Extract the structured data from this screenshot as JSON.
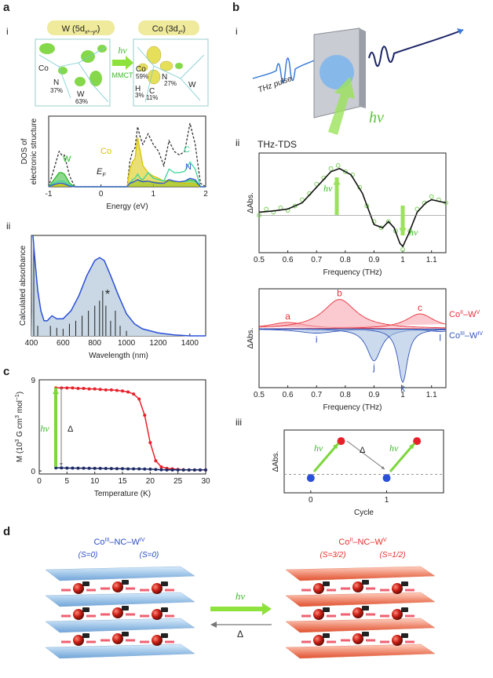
{
  "panel_labels": [
    "a",
    "b",
    "c",
    "d"
  ],
  "sub_labels": [
    "i",
    "ii",
    "i",
    "ii",
    "iii"
  ],
  "orbitals": {
    "left_title": [
      "W (5d",
      "x²−y²",
      ")"
    ],
    "right_title": [
      "Co (3d",
      "z²",
      ")"
    ],
    "arrow_top": "hν",
    "arrow_bottom": "MMCT",
    "left_atoms": [
      "Co",
      "N",
      "37%",
      "W",
      "63%"
    ],
    "right_atoms": [
      "Co",
      "59%",
      "N",
      "27%",
      "H",
      "3%",
      "C",
      "11%",
      "W"
    ]
  },
  "thz_schematic": {
    "pulse_label": "THz pulse",
    "light_label": "hν"
  },
  "thz_title": "THz-TDS",
  "chart_data": [
    {
      "type": "area",
      "xlabel": "Energy (eV)",
      "ylabel": [
        "DOS of",
        "electronic structure"
      ],
      "xlim": [
        -1,
        2
      ],
      "xticks": [
        -1,
        0,
        1,
        2
      ],
      "ylim": [
        0,
        1
      ],
      "annotation": [
        "E",
        "F"
      ],
      "x": [
        -1,
        -0.9,
        -0.8,
        -0.75,
        -0.7,
        -0.6,
        -0.5,
        0.5,
        0.55,
        0.6,
        0.65,
        0.7,
        0.75,
        0.8,
        0.9,
        1.0,
        1.1,
        1.2,
        1.3,
        1.4,
        1.5,
        1.6,
        1.7,
        1.8,
        1.9,
        2.0
      ],
      "series": [
        {
          "color": "#333333",
          "dashed": true,
          "values": [
            0,
            0.25,
            0.5,
            0.45,
            0.45,
            0.15,
            0,
            0,
            0.35,
            0.5,
            0.55,
            0.85,
            0.7,
            0.6,
            0.75,
            0.6,
            0.5,
            0.3,
            0.65,
            0.5,
            0.45,
            0.5,
            0.9,
            0.6,
            0.05,
            0
          ]
        },
        {
          "name": "W",
          "color": "#2db82d",
          "fill": true,
          "values": [
            0,
            0.1,
            0.2,
            0.2,
            0.18,
            0.05,
            0,
            0,
            0.05,
            0.07,
            0.08,
            0.1,
            0.09,
            0.08,
            0.08,
            0.07,
            0.06,
            0.05,
            0.08,
            0.07,
            0.07,
            0.08,
            0.1,
            0.08,
            0,
            0
          ]
        },
        {
          "name": "Co",
          "color": "#d8c400",
          "fill": true,
          "values": [
            0,
            0.02,
            0.03,
            0.03,
            0.03,
            0.01,
            0,
            0,
            0.25,
            0.35,
            0.4,
            0.7,
            0.5,
            0.3,
            0.2,
            0.15,
            0.12,
            0.08,
            0.1,
            0.08,
            0.06,
            0.05,
            0.05,
            0.04,
            0,
            0
          ]
        },
        {
          "name": "C",
          "color": "#39d49a",
          "values": [
            0,
            0.05,
            0.08,
            0.08,
            0.07,
            0.02,
            0,
            0,
            0.05,
            0.1,
            0.12,
            0.18,
            0.12,
            0.1,
            0.2,
            0.12,
            0.1,
            0.08,
            0.25,
            0.2,
            0.2,
            0.22,
            0.35,
            0.25,
            0,
            0
          ]
        },
        {
          "name": "N",
          "color": "#3355dd",
          "values": [
            0,
            0.03,
            0.05,
            0.05,
            0.04,
            0.01,
            0,
            0,
            0.05,
            0.06,
            0.08,
            0.1,
            0.08,
            0.07,
            0.08,
            0.06,
            0.05,
            0.05,
            0.1,
            0.08,
            0.07,
            0.08,
            0.12,
            0.1,
            0,
            0
          ]
        }
      ]
    },
    {
      "type": "line",
      "xlabel": "Wavelength (nm)",
      "ylabel": "Calculated absorbance",
      "xlim": [
        400,
        1500
      ],
      "xticks": [
        400,
        600,
        800,
        1000,
        1200,
        1400
      ],
      "ylim": [
        0,
        1
      ],
      "fill_under": true,
      "annotation": "*",
      "series": [
        {
          "color": "#2b50d8",
          "x": [
            410,
            420,
            440,
            460,
            480,
            500,
            530,
            560,
            600,
            650,
            700,
            750,
            800,
            830,
            860,
            900,
            950,
            1000,
            1050,
            1100,
            1200,
            1300,
            1400,
            1500
          ],
          "values": [
            1.0,
            0.8,
            0.45,
            0.25,
            0.15,
            0.15,
            0.2,
            0.17,
            0.17,
            0.25,
            0.4,
            0.6,
            0.75,
            0.78,
            0.75,
            0.6,
            0.4,
            0.22,
            0.12,
            0.07,
            0.03,
            0.01,
            0,
            0
          ]
        }
      ],
      "sticks": {
        "color": "#222222",
        "x": [
          415,
          440,
          520,
          560,
          600,
          640,
          680,
          720,
          760,
          800,
          830,
          850,
          870,
          900,
          930,
          960,
          1000
        ],
        "values": [
          0.9,
          0.1,
          0.1,
          0.08,
          0.07,
          0.12,
          0.15,
          0.2,
          0.25,
          0.3,
          0.35,
          0.45,
          0.3,
          0.15,
          0.25,
          0.1,
          0.05
        ]
      }
    },
    {
      "type": "line",
      "xlabel": "Temperature (K)",
      "ylabel": [
        "M (10",
        "3",
        " G cm",
        "3",
        " mol",
        "−1",
        ")"
      ],
      "xlim": [
        0,
        30
      ],
      "xticks": [
        0,
        5,
        10,
        15,
        20,
        25,
        30
      ],
      "ylim": [
        -0.3,
        9
      ],
      "yticks": [
        0,
        9
      ],
      "markers": true,
      "annotations": [
        "hν",
        "Δ"
      ],
      "x": [
        3,
        4,
        5,
        6,
        7,
        8,
        9,
        10,
        11,
        12,
        13,
        14,
        15,
        16,
        17,
        18,
        19,
        20,
        21,
        22,
        23,
        24,
        25,
        26,
        27,
        28,
        29,
        30
      ],
      "series": [
        {
          "color": "#e8202a",
          "values": [
            8.2,
            8.2,
            8.2,
            8.2,
            8.15,
            8.15,
            8.1,
            8.1,
            8.05,
            8.0,
            8.0,
            7.95,
            7.9,
            7.8,
            7.6,
            7.1,
            5.5,
            2.8,
            1.0,
            0.4,
            0.25,
            0.2,
            0.15,
            0.12,
            0.1,
            0.1,
            0.1,
            0.1
          ]
        },
        {
          "color": "#1c2a66",
          "values": [
            0.3,
            0.3,
            0.28,
            0.28,
            0.27,
            0.27,
            0.26,
            0.25,
            0.25,
            0.24,
            0.23,
            0.22,
            0.22,
            0.2,
            0.2,
            0.2,
            0.18,
            0.17,
            0.15,
            0.12,
            0.1,
            0.1,
            0.1,
            0.1,
            0.1,
            0.1,
            0.1,
            0.1
          ]
        }
      ]
    },
    {
      "type": "scatter",
      "xlabel": "Frequency (THz)",
      "ylabel": "ΔAbs.",
      "xlim": [
        0.5,
        1.15
      ],
      "xticks": [
        0.5,
        0.6,
        0.7,
        0.8,
        0.9,
        1,
        1.1
      ],
      "ylim": [
        -0.6,
        1
      ],
      "annotations": [
        "hν",
        "hν"
      ],
      "series": [
        {
          "color": "#7ccf5a",
          "style": "points-open",
          "x": [
            0.5,
            0.525,
            0.55,
            0.575,
            0.6,
            0.625,
            0.65,
            0.675,
            0.7,
            0.725,
            0.75,
            0.775,
            0.8,
            0.825,
            0.85,
            0.875,
            0.9,
            0.925,
            0.95,
            0.975,
            1.0,
            1.025,
            1.05,
            1.075,
            1.1,
            1.125,
            1.15
          ],
          "values": [
            0.0,
            0.1,
            0.05,
            0.12,
            0.08,
            0.15,
            0.25,
            0.35,
            0.5,
            0.6,
            0.75,
            0.8,
            0.7,
            0.65,
            0.45,
            0.15,
            -0.1,
            -0.2,
            -0.1,
            -0.25,
            -0.55,
            -0.25,
            0.1,
            0.2,
            0.3,
            0.25,
            0.2
          ]
        },
        {
          "color": "#111111",
          "style": "line",
          "x": [
            0.5,
            0.55,
            0.6,
            0.65,
            0.7,
            0.75,
            0.78,
            0.82,
            0.86,
            0.88,
            0.9,
            0.93,
            0.95,
            0.97,
            0.99,
            1.0,
            1.02,
            1.05,
            1.08,
            1.1,
            1.15
          ],
          "values": [
            0.05,
            0.07,
            0.1,
            0.2,
            0.45,
            0.7,
            0.75,
            0.65,
            0.35,
            0.1,
            -0.15,
            -0.2,
            -0.1,
            -0.2,
            -0.45,
            -0.5,
            -0.3,
            0.05,
            0.2,
            0.25,
            0.2
          ]
        }
      ]
    },
    {
      "type": "peaks",
      "xlabel": "Frequency (THz)",
      "ylabel": "ΔAbs.",
      "xlim": [
        0.5,
        1.15
      ],
      "xticks": [
        0.5,
        0.6,
        0.7,
        0.8,
        0.9,
        1,
        1.1
      ],
      "ylim": [
        -1.1,
        0.75
      ],
      "series": [
        {
          "name": [
            "Co",
            "II",
            "–W",
            "V"
          ],
          "color": "#e8303a",
          "fillcolor": "#f6a7b0",
          "peaks": [
            {
              "label": "a",
              "center": 0.6,
              "height": 0.12,
              "width": 0.08
            },
            {
              "label": "b",
              "center": 0.78,
              "height": 0.55,
              "width": 0.07
            },
            {
              "label": "c",
              "center": 1.06,
              "height": 0.28,
              "width": 0.06
            }
          ]
        },
        {
          "name": [
            "Co",
            "III",
            "–W",
            "IV"
          ],
          "color": "#3355bb",
          "fillcolor": "#a9c2e0",
          "peaks": [
            {
              "label": "i",
              "center": 0.7,
              "height": -0.08,
              "width": 0.08
            },
            {
              "label": "j",
              "center": 0.9,
              "height": -0.6,
              "width": 0.03
            },
            {
              "label": "k",
              "center": 1.0,
              "height": -1.0,
              "width": 0.02
            },
            {
              "label": "l",
              "center": 1.13,
              "height": -0.05,
              "width": 0.05
            }
          ]
        }
      ]
    },
    {
      "type": "scatter",
      "xlabel": "Cycle",
      "ylabel": "ΔAbs.",
      "xlim": [
        -0.35,
        1.75
      ],
      "xticks": [
        0,
        1
      ],
      "ylim": [
        -0.4,
        1.3
      ],
      "annotations": [
        "hν",
        "Δ",
        "hν"
      ],
      "series": [
        {
          "color": "#2b50d8",
          "style": "points",
          "x": [
            0,
            1
          ],
          "values": [
            0,
            0
          ]
        },
        {
          "color": "#e8202a",
          "style": "points",
          "x": [
            0.4,
            1.4
          ],
          "values": [
            1,
            1
          ]
        }
      ]
    }
  ],
  "d": {
    "left_formula": [
      "Co",
      "III",
      "–NC–W",
      "IV"
    ],
    "left_spins": [
      "(S=0)",
      "(S=0)"
    ],
    "right_formula": [
      "Co",
      "II",
      "–NC–W",
      "V"
    ],
    "right_spins": [
      "(S=3/2)",
      "(S=1/2)"
    ],
    "forward": "hν",
    "backward": "Δ"
  }
}
